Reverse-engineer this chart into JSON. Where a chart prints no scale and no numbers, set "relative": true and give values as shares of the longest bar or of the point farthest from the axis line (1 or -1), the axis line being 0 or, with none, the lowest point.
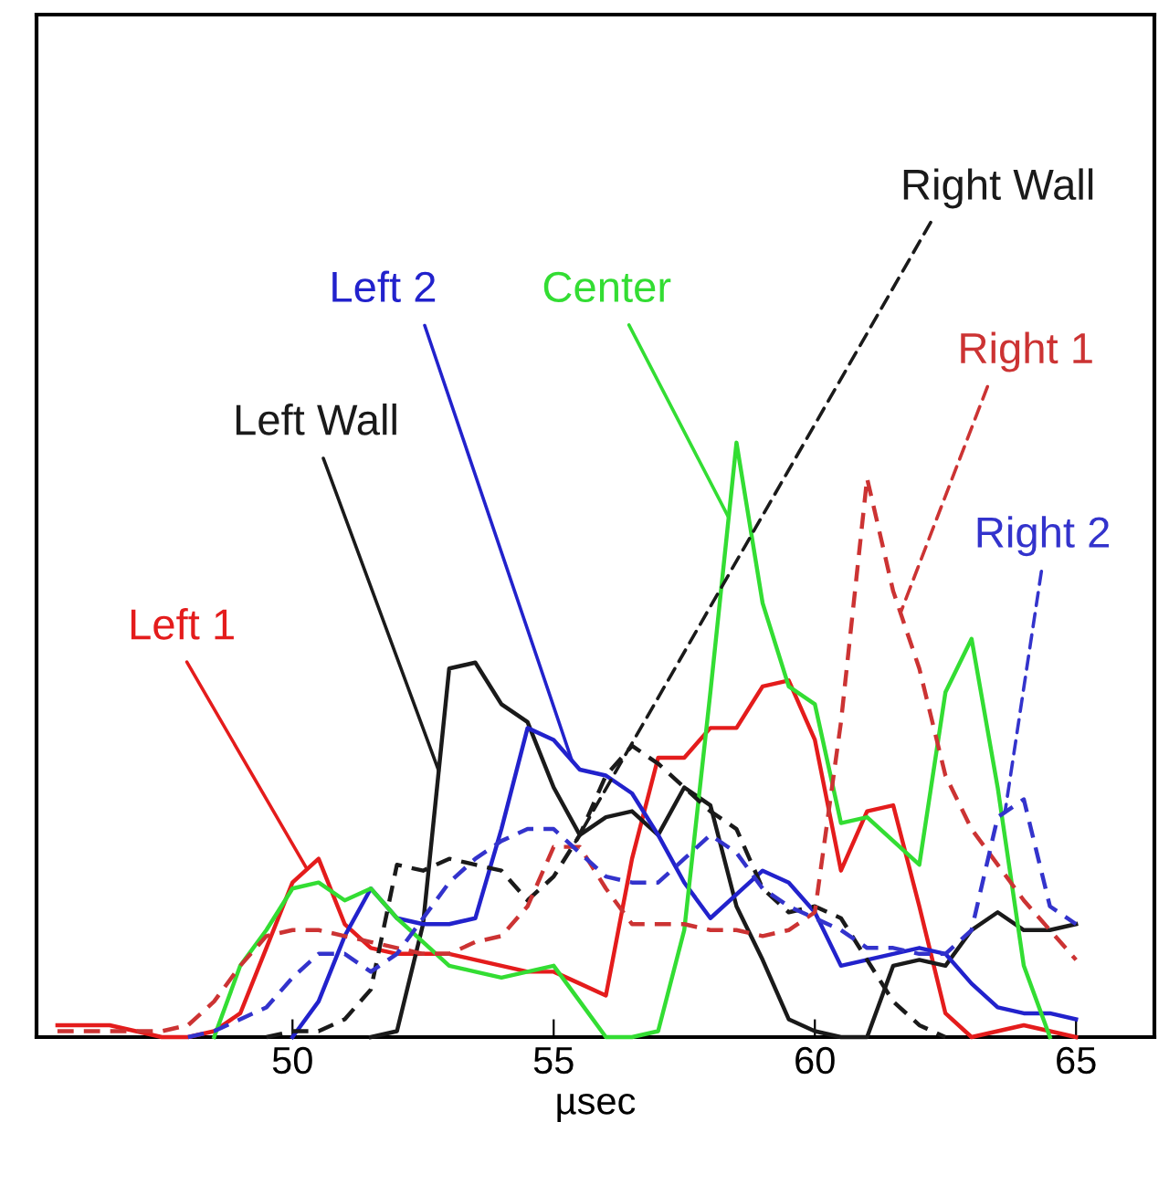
{
  "chart_data": {
    "type": "line",
    "relative": true,
    "xlabel": "µsec",
    "xlim": [
      45.1,
      66.5
    ],
    "xticks": [
      50,
      55,
      60,
      65
    ],
    "tick_labels": "x",
    "grid": false,
    "marker": "none",
    "x": [
      45.5,
      46,
      46.5,
      47,
      47.5,
      48,
      48.5,
      49,
      49.5,
      50,
      50.5,
      51,
      51.5,
      52,
      52.5,
      53,
      53.5,
      54,
      54.5,
      55,
      55.5,
      56,
      56.5,
      57,
      57.5,
      58,
      58.5,
      59,
      59.5,
      60,
      60.5,
      61,
      61.5,
      62,
      62.5,
      63,
      63.5,
      64,
      64.5,
      65
    ],
    "series": [
      {
        "name": "Left 1",
        "color": "#e41c1c",
        "line_style": "solid",
        "values": [
          0.02,
          0.02,
          0.02,
          0.01,
          0,
          0,
          0.01,
          0.04,
          0.15,
          0.26,
          0.3,
          0.19,
          0.15,
          0.14,
          0.14,
          0.14,
          0.13,
          0.12,
          0.11,
          0.11,
          0.09,
          0.07,
          0.3,
          0.47,
          0.47,
          0.52,
          0.52,
          0.59,
          0.6,
          0.5,
          0.28,
          0.38,
          0.39,
          0.22,
          0.04,
          0,
          0.01,
          0.02,
          0.01,
          0
        ]
      },
      {
        "name": "Left Wall",
        "color": "#1a1a1a",
        "line_style": "solid",
        "values": [
          null,
          null,
          null,
          null,
          null,
          null,
          null,
          null,
          null,
          null,
          null,
          null,
          0,
          0.01,
          0.19,
          0.62,
          0.63,
          0.56,
          0.53,
          0.42,
          0.34,
          0.37,
          0.38,
          0.34,
          0.42,
          0.39,
          0.22,
          0.13,
          0.03,
          0.01,
          0,
          0,
          0.12,
          0.13,
          0.12,
          0.18,
          0.21,
          0.18,
          0.18,
          0.19
        ]
      },
      {
        "name": "Left 2",
        "color": "#2222cc",
        "line_style": "solid",
        "values": [
          null,
          null,
          null,
          null,
          null,
          null,
          null,
          null,
          null,
          0,
          0.06,
          0.17,
          0.25,
          0.2,
          0.19,
          0.19,
          0.2,
          0.35,
          0.52,
          0.5,
          0.45,
          0.44,
          0.41,
          0.34,
          0.26,
          0.2,
          0.24,
          0.28,
          0.26,
          0.21,
          0.12,
          0.13,
          0.14,
          0.15,
          0.14,
          0.09,
          0.05,
          0.04,
          0.04,
          0.03
        ]
      },
      {
        "name": "Center",
        "color": "#33dd33",
        "line_style": "solid",
        "values": [
          null,
          null,
          null,
          null,
          null,
          null,
          0,
          0.12,
          0.18,
          0.25,
          0.26,
          0.23,
          0.25,
          0.2,
          0.16,
          0.12,
          0.11,
          0.1,
          0.11,
          0.12,
          0.06,
          0,
          0,
          0.01,
          0.18,
          0.58,
          1,
          0.73,
          0.59,
          0.56,
          0.36,
          0.37,
          0.33,
          0.29,
          0.58,
          0.67,
          0.42,
          0.12,
          0,
          null
        ]
      },
      {
        "name": "Right Wall",
        "color": "#1a1a1a",
        "line_style": "dashed",
        "values": [
          null,
          null,
          null,
          null,
          null,
          null,
          null,
          null,
          0,
          0.01,
          0.01,
          0.03,
          0.08,
          0.29,
          0.28,
          0.3,
          0.29,
          0.28,
          0.23,
          0.27,
          0.34,
          0.44,
          0.49,
          0.46,
          0.42,
          0.38,
          0.35,
          0.25,
          0.21,
          0.22,
          0.2,
          0.13,
          0.06,
          0.02,
          0,
          null,
          null,
          null,
          null,
          null
        ]
      },
      {
        "name": "Right 1",
        "color": "#cc3333",
        "line_style": "dashed",
        "values": [
          0.01,
          0.01,
          0.01,
          0.01,
          0.01,
          0.02,
          0.06,
          0.12,
          0.17,
          0.18,
          0.18,
          0.17,
          0.16,
          0.15,
          0.14,
          0.14,
          0.16,
          0.17,
          0.22,
          0.32,
          0.32,
          0.25,
          0.19,
          0.19,
          0.19,
          0.18,
          0.18,
          0.17,
          0.18,
          0.21,
          0.53,
          0.94,
          0.75,
          0.62,
          0.44,
          0.35,
          0.29,
          0.23,
          0.18,
          0.13
        ]
      },
      {
        "name": "Right 2",
        "color": "#3333cc",
        "line_style": "dashed",
        "values": [
          null,
          null,
          null,
          null,
          null,
          0,
          0.01,
          0.03,
          0.05,
          0.1,
          0.14,
          0.14,
          0.11,
          0.14,
          0.2,
          0.26,
          0.3,
          0.33,
          0.35,
          0.35,
          0.31,
          0.27,
          0.26,
          0.26,
          0.3,
          0.34,
          0.31,
          0.25,
          0.22,
          0.2,
          0.18,
          0.15,
          0.15,
          0.14,
          0.14,
          0.18,
          0.37,
          0.4,
          0.22,
          0.19
        ]
      }
    ]
  }
}
